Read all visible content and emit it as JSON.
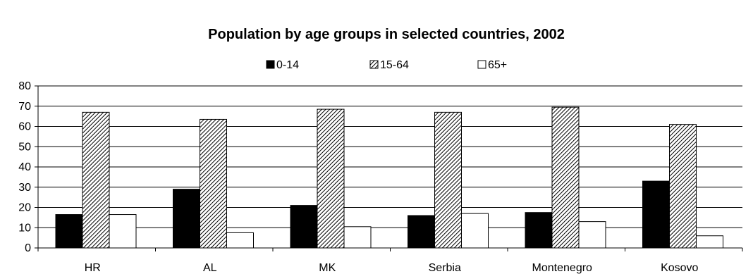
{
  "chart_data": {
    "type": "bar",
    "title": "Population by age groups in selected countries, 2002",
    "xlabel": "",
    "ylabel": "",
    "categories": [
      "HR",
      "AL",
      "MK",
      "Serbia",
      "Montenegro",
      "Kosovo"
    ],
    "series": [
      {
        "name": "0-14",
        "values": [
          16.5,
          29,
          21,
          16,
          17.5,
          33
        ],
        "fill": "solid"
      },
      {
        "name": "15-64",
        "values": [
          67,
          63.5,
          68.5,
          67,
          69.5,
          61
        ],
        "fill": "hatch"
      },
      {
        "name": "65+",
        "values": [
          16.5,
          7.5,
          10.5,
          17,
          13,
          6
        ],
        "fill": "white"
      }
    ],
    "ylim": [
      0,
      80
    ],
    "yticks": [
      0,
      10,
      20,
      30,
      40,
      50,
      60,
      70,
      80
    ],
    "grid": true,
    "legend_position": "top-center",
    "colors": {
      "bar_stroke": "#000000",
      "series_0": "#000000",
      "series_1_hatch": "#000000",
      "series_2": "#ffffff",
      "grid": "#000000"
    }
  }
}
